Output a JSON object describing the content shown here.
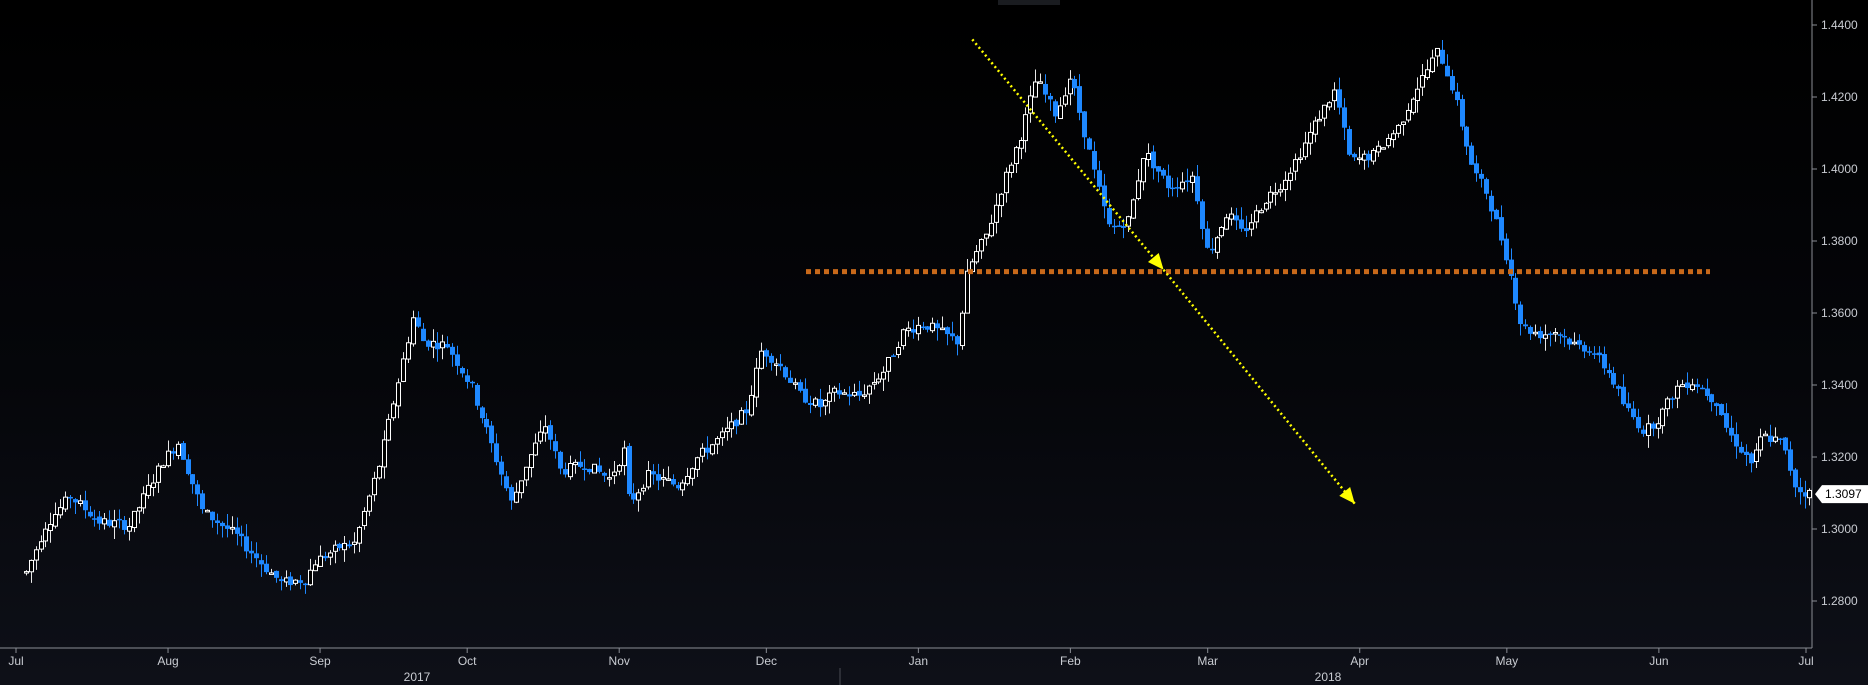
{
  "chart_data": {
    "type": "candlestick",
    "title": "",
    "xlabel": "",
    "ylabel": "",
    "ylim": [
      1.27,
      1.448
    ],
    "y_ticks": [
      "1.4400",
      "1.4200",
      "1.4000",
      "1.3800",
      "1.3600",
      "1.3400",
      "1.3200",
      "1.3000",
      "1.2800"
    ],
    "month_labels": [
      "Jul",
      "Aug",
      "Sep",
      "Oct",
      "Nov",
      "Dec",
      "Jan",
      "Feb",
      "Mar",
      "Apr",
      "May",
      "Jun",
      "Jul"
    ],
    "year_labels": [
      "2017",
      "2018"
    ],
    "last_price": "1.3097",
    "grid": false,
    "colors": {
      "up": "#ffffff",
      "down": "#1e88ff",
      "support": "#c8691a",
      "arrow": "#ffff00",
      "axis_text": "#c9ccd2"
    },
    "support_level": 1.3715,
    "annotations": [
      {
        "type": "dotted-arrow",
        "from": [
          "2018-01-12",
          1.436
        ],
        "to": [
          "2018-02-20",
          1.372
        ]
      },
      {
        "type": "dotted-arrow",
        "from": [
          "2018-02-20",
          1.372
        ],
        "to": [
          "2018-03-31",
          1.307
        ]
      }
    ],
    "anchors": [
      [
        "2017-07-03",
        1.288
      ],
      [
        "2017-07-07",
        1.301
      ],
      [
        "2017-07-12",
        1.309
      ],
      [
        "2017-07-18",
        1.302
      ],
      [
        "2017-07-24",
        1.301
      ],
      [
        "2017-07-31",
        1.319
      ],
      [
        "2017-08-03",
        1.324
      ],
      [
        "2017-08-08",
        1.305
      ],
      [
        "2017-08-15",
        1.298
      ],
      [
        "2017-08-21",
        1.289
      ],
      [
        "2017-08-24",
        1.285
      ],
      [
        "2017-08-29",
        1.286
      ],
      [
        "2017-08-31",
        1.291
      ],
      [
        "2017-09-05",
        1.295
      ],
      [
        "2017-09-08",
        1.296
      ],
      [
        "2017-09-13",
        1.318
      ],
      [
        "2017-09-20",
        1.359
      ],
      [
        "2017-09-22",
        1.352
      ],
      [
        "2017-09-27",
        1.351
      ],
      [
        "2017-10-02",
        1.339
      ],
      [
        "2017-10-06",
        1.323
      ],
      [
        "2017-10-10",
        1.307
      ],
      [
        "2017-10-13",
        1.318
      ],
      [
        "2017-10-17",
        1.329
      ],
      [
        "2017-10-20",
        1.316
      ],
      [
        "2017-10-25",
        1.318
      ],
      [
        "2017-10-30",
        1.314
      ],
      [
        "2017-11-02",
        1.322
      ],
      [
        "2017-11-03",
        1.307
      ],
      [
        "2017-11-07",
        1.315
      ],
      [
        "2017-11-13",
        1.312
      ],
      [
        "2017-11-17",
        1.32
      ],
      [
        "2017-11-22",
        1.326
      ],
      [
        "2017-11-27",
        1.333
      ],
      [
        "2017-11-30",
        1.35
      ],
      [
        "2017-12-04",
        1.345
      ],
      [
        "2017-12-08",
        1.337
      ],
      [
        "2017-12-12",
        1.334
      ],
      [
        "2017-12-15",
        1.338
      ],
      [
        "2017-12-20",
        1.337
      ],
      [
        "2017-12-25",
        1.344
      ],
      [
        "2017-12-29",
        1.355
      ],
      [
        "2018-01-02",
        1.357
      ],
      [
        "2018-01-05",
        1.355
      ],
      [
        "2018-01-09",
        1.352
      ],
      [
        "2018-01-11",
        1.372
      ],
      [
        "2018-01-15",
        1.382
      ],
      [
        "2018-01-18",
        1.395
      ],
      [
        "2018-01-22",
        1.41
      ],
      [
        "2018-01-25",
        1.425
      ],
      [
        "2018-01-29",
        1.415
      ],
      [
        "2018-02-01",
        1.426
      ],
      [
        "2018-02-06",
        1.398
      ],
      [
        "2018-02-09",
        1.383
      ],
      [
        "2018-02-13",
        1.386
      ],
      [
        "2018-02-16",
        1.405
      ],
      [
        "2018-02-21",
        1.395
      ],
      [
        "2018-02-26",
        1.398
      ],
      [
        "2018-03-01",
        1.376
      ],
      [
        "2018-03-05",
        1.388
      ],
      [
        "2018-03-08",
        1.382
      ],
      [
        "2018-03-13",
        1.392
      ],
      [
        "2018-03-16",
        1.396
      ],
      [
        "2018-03-20",
        1.405
      ],
      [
        "2018-03-23",
        1.413
      ],
      [
        "2018-03-27",
        1.422
      ],
      [
        "2018-03-30",
        1.402
      ],
      [
        "2018-04-04",
        1.404
      ],
      [
        "2018-04-09",
        1.412
      ],
      [
        "2018-04-12",
        1.421
      ],
      [
        "2018-04-17",
        1.433
      ],
      [
        "2018-04-20",
        1.422
      ],
      [
        "2018-04-24",
        1.4
      ],
      [
        "2018-04-27",
        1.393
      ],
      [
        "2018-05-01",
        1.375
      ],
      [
        "2018-05-04",
        1.356
      ],
      [
        "2018-05-08",
        1.354
      ],
      [
        "2018-05-11",
        1.355
      ],
      [
        "2018-05-15",
        1.351
      ],
      [
        "2018-05-18",
        1.35
      ],
      [
        "2018-05-22",
        1.343
      ],
      [
        "2018-05-25",
        1.334
      ],
      [
        "2018-05-29",
        1.327
      ],
      [
        "2018-06-01",
        1.331
      ],
      [
        "2018-06-05",
        1.34
      ],
      [
        "2018-06-08",
        1.341
      ],
      [
        "2018-06-13",
        1.335
      ],
      [
        "2018-06-15",
        1.327
      ],
      [
        "2018-06-20",
        1.318
      ],
      [
        "2018-06-22",
        1.326
      ],
      [
        "2018-06-26",
        1.324
      ],
      [
        "2018-06-29",
        1.311
      ],
      [
        "2018-07-02",
        1.3097
      ]
    ]
  }
}
